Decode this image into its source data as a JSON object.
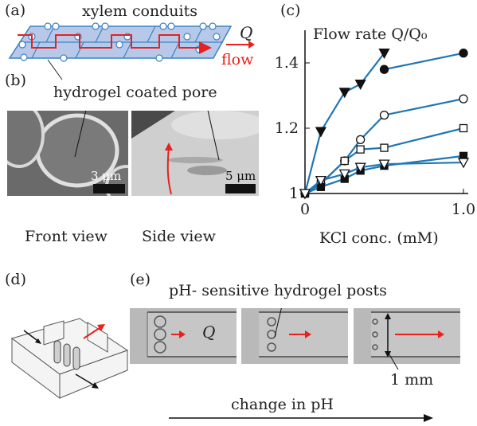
{
  "panels": {
    "a": {
      "letter": "(a)",
      "title": "xylem conduits",
      "q_label": "Q",
      "flow_label": "flow"
    },
    "b": {
      "letter": "(b)",
      "pore_label": "hydrogel coated pore",
      "scale_left": "3 μm",
      "scale_right": "5 μm",
      "caption_left": "Front view",
      "caption_right": "Side view"
    },
    "c": {
      "letter": "(c)",
      "title": "Flow rate Q/Q₀",
      "xlabel": "KCl conc. (mM)"
    },
    "d": {
      "letter": "(d)"
    },
    "e": {
      "letter": "(e)",
      "posts_label": "pH- sensitive hydrogel posts",
      "q_label": "Q",
      "scale_label": "1 mm",
      "arrow_label": "change in pH"
    }
  },
  "colors": {
    "line": "#1f77b4",
    "red": "#e8211f",
    "photo_dark": "#6f6f6f",
    "photo_light": "#c8c8c8"
  },
  "chart_data": {
    "type": "line",
    "title": "Flow rate Q/Q₀",
    "xlabel": "KCl conc. (mM)",
    "ylabel": "",
    "xlim": [
      0,
      1.0
    ],
    "ylim": [
      1.0,
      1.5
    ],
    "xticks": [
      "0",
      "1.0"
    ],
    "yticks": [
      "1",
      "1.2",
      "1.4"
    ],
    "series": [
      {
        "marker": "triangle-down-filled",
        "x": [
          0,
          0.1,
          0.25,
          0.35,
          0.5
        ],
        "y": [
          1.0,
          1.19,
          1.31,
          1.335,
          1.43
        ]
      },
      {
        "marker": "circle-filled",
        "x": [
          0.5,
          1.0
        ],
        "y": [
          1.38,
          1.43
        ]
      },
      {
        "marker": "circle-open",
        "x": [
          0,
          0.1,
          0.25,
          0.35,
          0.5,
          1.0
        ],
        "y": [
          1.0,
          1.03,
          1.1,
          1.165,
          1.24,
          1.29
        ]
      },
      {
        "marker": "square-open",
        "x": [
          0,
          0.1,
          0.25,
          0.35,
          0.5,
          1.0
        ],
        "y": [
          1.0,
          1.03,
          1.1,
          1.135,
          1.14,
          1.2
        ]
      },
      {
        "marker": "square-filled",
        "x": [
          0,
          0.1,
          0.25,
          0.35,
          0.5,
          1.0
        ],
        "y": [
          1.0,
          1.02,
          1.045,
          1.07,
          1.085,
          1.115
        ]
      },
      {
        "marker": "triangle-down-open",
        "x": [
          0,
          0.1,
          0.25,
          0.35,
          0.5,
          1.0
        ],
        "y": [
          1.0,
          1.04,
          1.06,
          1.08,
          1.09,
          1.095
        ]
      }
    ]
  }
}
